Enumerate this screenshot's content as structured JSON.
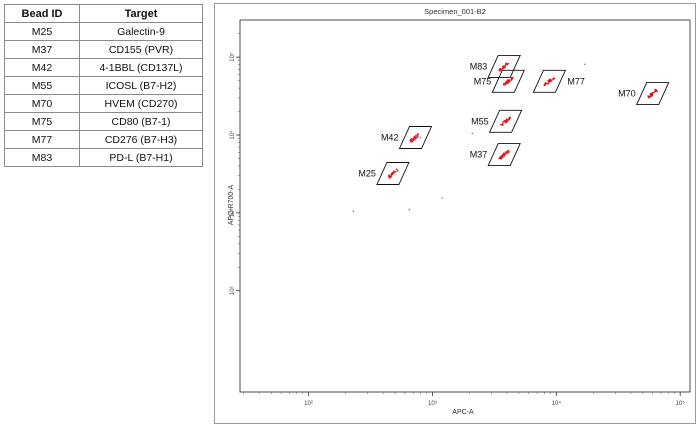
{
  "table": {
    "headers": {
      "id": "Bead ID",
      "target": "Target"
    },
    "rows": [
      {
        "id": "M25",
        "target": "Galectin-9"
      },
      {
        "id": "M37",
        "target": "CD155 (PVR)"
      },
      {
        "id": "M42",
        "target": "4-1BBL (CD137L)"
      },
      {
        "id": "M55",
        "target": "ICOSL (B7-H2)"
      },
      {
        "id": "M70",
        "target": "HVEM (CD270)"
      },
      {
        "id": "M75",
        "target": "CD80 (B7-1)"
      },
      {
        "id": "M77",
        "target": "CD276 (B7-H3)"
      },
      {
        "id": "M83",
        "target": "PD-L (B7-H1)"
      }
    ]
  },
  "chart_data": {
    "type": "scatter",
    "title": "Specimen_001-B2",
    "xlabel": "APC-A",
    "ylabel": "APC-R700-A",
    "x_scale": "log",
    "y_scale": "log",
    "xlim": [
      28,
      120000
    ],
    "ylim": [
      5,
      300000
    ],
    "x_ticks": [
      {
        "value": 100,
        "label": "10²"
      },
      {
        "value": 1000,
        "label": "10³"
      },
      {
        "value": 10000,
        "label": "10⁴"
      },
      {
        "value": 100000,
        "label": "10⁵"
      }
    ],
    "y_ticks": [
      {
        "value": 100,
        "label": "10²"
      },
      {
        "value": 1000,
        "label": "10³"
      },
      {
        "value": 10000,
        "label": "10⁴"
      },
      {
        "value": 100000,
        "label": "10⁵"
      }
    ],
    "grid": false,
    "point_color": "#e0151b",
    "gate_color": "#111111",
    "populations": [
      {
        "name": "M25",
        "x": 480,
        "y": 3200
      },
      {
        "name": "M37",
        "x": 3800,
        "y": 5600
      },
      {
        "name": "M42",
        "x": 730,
        "y": 9300
      },
      {
        "name": "M55",
        "x": 3900,
        "y": 15000
      },
      {
        "name": "M70",
        "x": 60000,
        "y": 34000
      },
      {
        "name": "M75",
        "x": 4100,
        "y": 49000
      },
      {
        "name": "M77",
        "x": 8800,
        "y": 49000
      },
      {
        "name": "M83",
        "x": 3800,
        "y": 76000
      }
    ],
    "stray_events": [
      {
        "x": 230,
        "y": 1050
      },
      {
        "x": 650,
        "y": 1100
      },
      {
        "x": 1200,
        "y": 1550
      },
      {
        "x": 2100,
        "y": 10500
      },
      {
        "x": 17000,
        "y": 81000
      },
      {
        "x": 800,
        "y": 9300
      }
    ]
  }
}
